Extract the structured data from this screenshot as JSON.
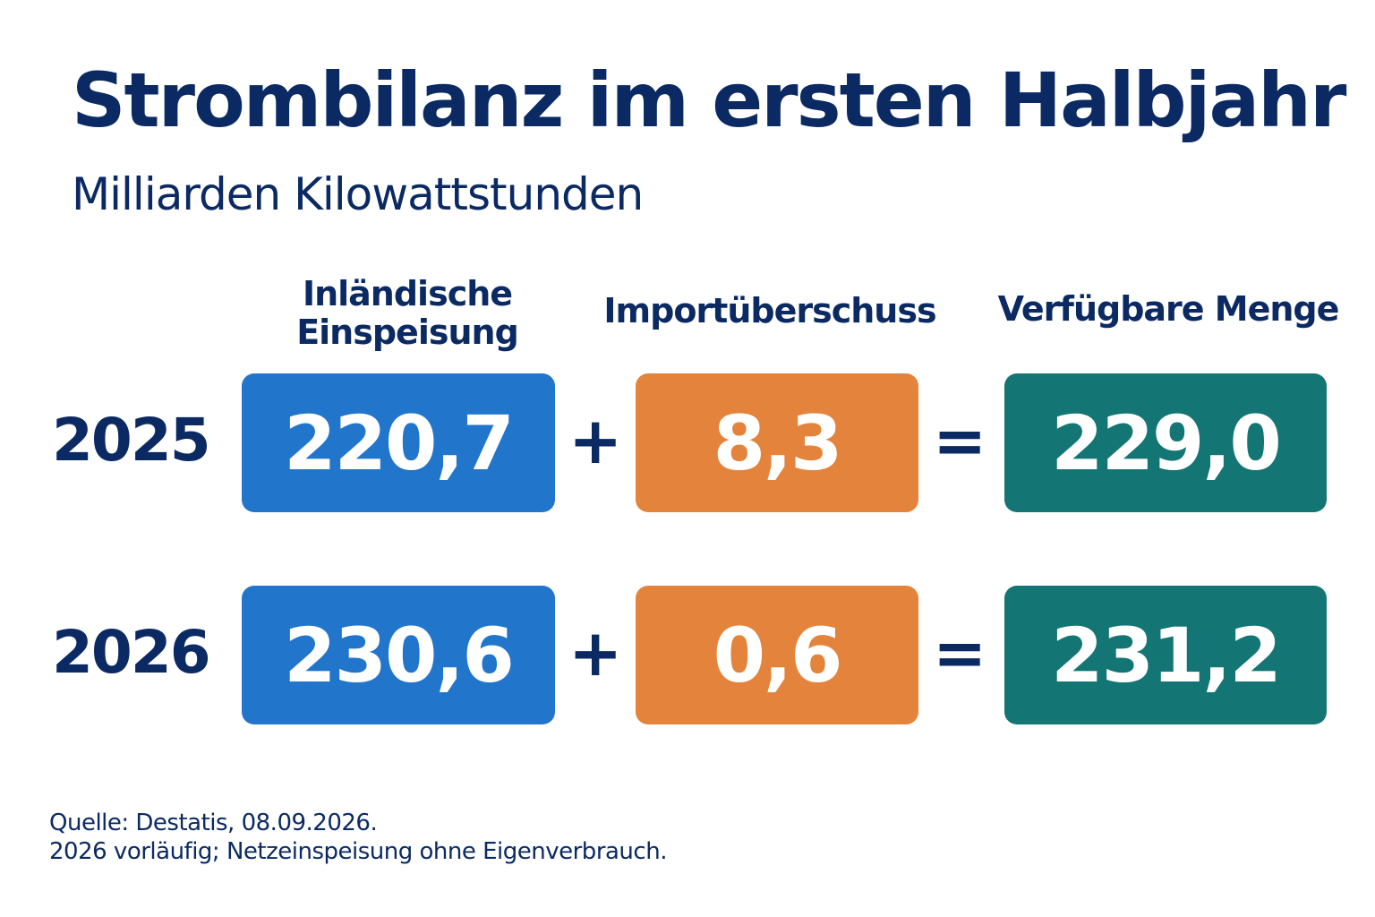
{
  "chart_data": {
    "type": "table",
    "title": "Strombilanz im ersten Halbjahr",
    "subtitle": "Milliarden Kilowattstunden",
    "columns": [
      {
        "label_lines": [
          "Inländische",
          "Einspeisung"
        ]
      },
      {
        "label_lines": [
          "Importüberschuss"
        ]
      },
      {
        "label_lines": [
          "Verfügbare Menge"
        ]
      }
    ],
    "operators": [
      "+",
      "="
    ],
    "rows": [
      {
        "year": "2025",
        "values": [
          "220,7",
          "8,3",
          "229,0"
        ]
      },
      {
        "year": "2026",
        "values": [
          "230,6",
          "0,6",
          "231,2"
        ]
      }
    ],
    "colors": {
      "title_text": "#0b2a63",
      "domestic_feed_in": "#2176cc",
      "import_surplus": "#e4843c",
      "available_amount": "#137574",
      "box_text": "#ffffff"
    }
  },
  "footnotes": {
    "source": "Quelle: Destatis, 08.09.2026.",
    "note": "2026 vorläufig; Netzeinspeisung ohne Eigenverbrauch."
  }
}
